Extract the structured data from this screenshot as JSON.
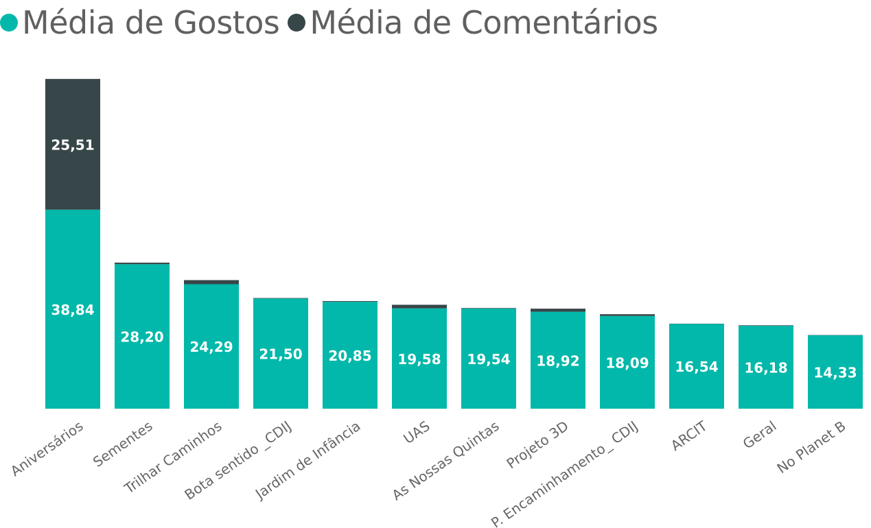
{
  "legend": {
    "items": [
      {
        "label": "Média de Gostos",
        "color": "#01B8AA"
      },
      {
        "label": "Média de Comentários",
        "color": "#374649"
      }
    ]
  },
  "chart_data": {
    "type": "bar",
    "stacked": true,
    "categories": [
      "Aniversários",
      "Sementes",
      "Trilhar Caminhos",
      "Bota sentido _CDIJ",
      "Jardim de Infância",
      "UAS",
      "As Nossas Quintas",
      "Projeto 3D",
      "P. Encaminhamento_ CDIJ",
      "ARCIT",
      "Geral",
      "No Planet B"
    ],
    "series": [
      {
        "name": "Média de Gostos",
        "color": "#01B8AA",
        "values": [
          38.84,
          28.2,
          24.29,
          21.5,
          20.85,
          19.58,
          19.54,
          18.92,
          18.09,
          16.54,
          16.18,
          14.33
        ],
        "labels": [
          "38,84",
          "28,20",
          "24,29",
          "21,50",
          "20,85",
          "19,58",
          "19,54",
          "18,92",
          "18,09",
          "16,54",
          "16,18",
          "14,33"
        ]
      },
      {
        "name": "Média de Comentários",
        "color": "#374649",
        "values": [
          25.51,
          0.3,
          0.8,
          0.1,
          0.15,
          0.7,
          0.1,
          0.6,
          0.35,
          0.05,
          0.1,
          0.05
        ],
        "labels": [
          "25,51",
          "",
          "",
          "",
          "",
          "",
          "",
          "",
          "",
          "",
          "",
          ""
        ]
      }
    ],
    "ylim": [
      0,
      64.5
    ],
    "grid": false,
    "legend_position": "top-left"
  }
}
